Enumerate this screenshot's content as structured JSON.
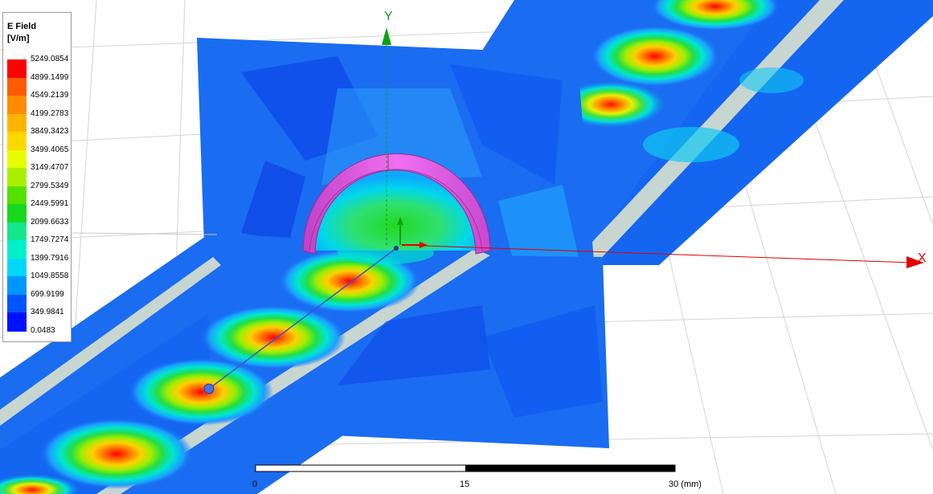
{
  "legend": {
    "title_line1": "E Field",
    "title_line2": "[V/m]",
    "values": [
      "5249.0854",
      "4899.1499",
      "4549.2139",
      "4199.2783",
      "3849.3423",
      "3499.4065",
      "3149.4707",
      "2799.5349",
      "2449.5991",
      "2099.6633",
      "1749.7274",
      "1399.7916",
      "1049.8558",
      "699.9199",
      "349.9841",
      "0.0483"
    ],
    "colors": [
      "#ff0000",
      "#ff5a00",
      "#ff8c00",
      "#ffb400",
      "#ffd700",
      "#e6ff00",
      "#a8f000",
      "#55e000",
      "#18d81e",
      "#14e68c",
      "#00f0c8",
      "#00d8ff",
      "#0096ff",
      "#0055ff",
      "#0010ff"
    ]
  },
  "axes": {
    "x_label": "X",
    "y_label": "Y",
    "x_color": "#e00000",
    "y_color": "#10a010"
  },
  "scale_bar": {
    "labels": [
      "0",
      "15",
      "30 (mm)"
    ]
  },
  "colors": {
    "ring": "#e050e0",
    "field_bg": "#1a6cf0",
    "field_mid": "#22a8ff",
    "grid": "#d8d8d8",
    "gap": "#c8d6d2"
  }
}
